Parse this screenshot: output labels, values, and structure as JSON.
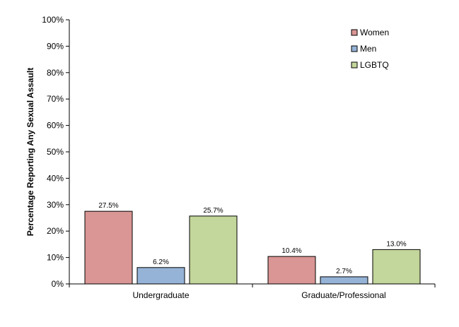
{
  "chart_data": {
    "type": "bar",
    "title": "",
    "xlabel": "",
    "ylabel": "Percentage Reporting Any Sexual Assault",
    "categories": [
      "Undergraduate",
      "Graduate/Professional"
    ],
    "series": [
      {
        "name": "Women",
        "values": [
          27.5,
          10.4
        ],
        "labels": [
          "27.5%",
          "10.4%"
        ],
        "color": "#d99694"
      },
      {
        "name": "Men",
        "values": [
          6.2,
          2.7
        ],
        "labels": [
          "6.2%",
          "2.7%"
        ],
        "color": "#95b3d7"
      },
      {
        "name": "LGBTQ",
        "values": [
          25.7,
          13.0
        ],
        "labels": [
          "25.7%",
          "13.0%"
        ],
        "color": "#c3d69b"
      }
    ],
    "ylim": [
      0,
      100
    ],
    "yticks": [
      0,
      10,
      20,
      30,
      40,
      50,
      60,
      70,
      80,
      90,
      100
    ],
    "ytick_labels": [
      "0%",
      "10%",
      "20%",
      "30%",
      "40%",
      "50%",
      "60%",
      "70%",
      "80%",
      "90%",
      "100%"
    ],
    "grid": false,
    "legend_position": "top-right"
  }
}
